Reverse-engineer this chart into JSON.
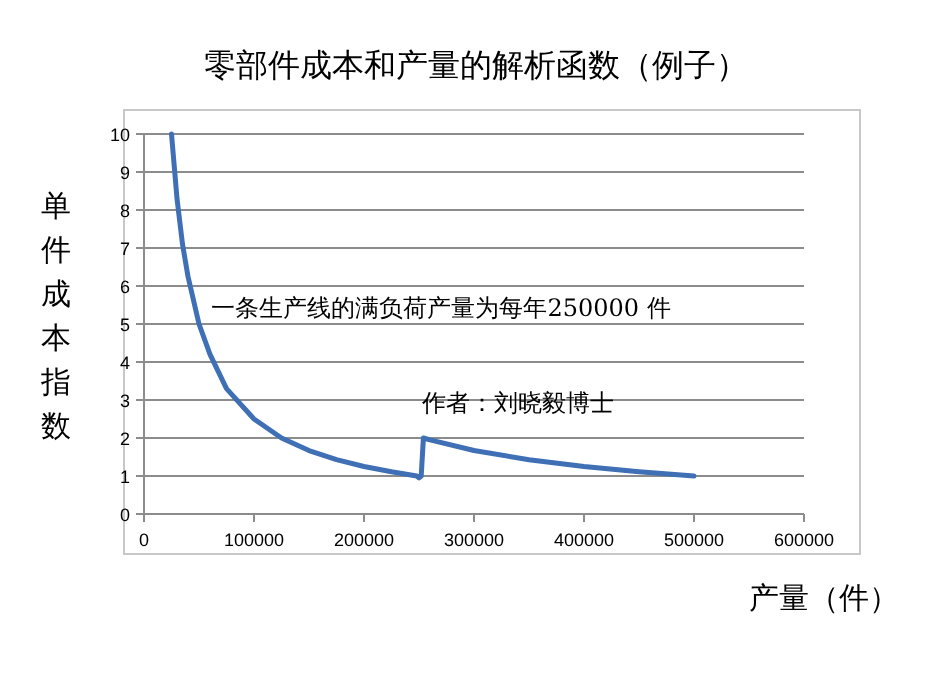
{
  "chart_data": {
    "type": "line",
    "title": "零部件成本和产量的解析函数（例子）",
    "xlabel": "产量（件）",
    "ylabel": "单件成本指数",
    "annotations": [
      "一条生产线的满负荷产量为每年250000 件",
      "作者：刘晓毅博士"
    ],
    "series": [
      {
        "color": "#3f6fb5",
        "x": [
          25000,
          30000,
          35000,
          40000,
          50000,
          60000,
          75000,
          100000,
          125000,
          150000,
          175000,
          200000,
          225000,
          248000,
          250000,
          252000,
          254000,
          260000,
          300000,
          350000,
          400000,
          450000,
          500000
        ],
        "values": [
          10,
          8.3,
          7.1,
          6.25,
          5,
          4.2,
          3.3,
          2.5,
          2,
          1.67,
          1.43,
          1.25,
          1.11,
          1,
          0.95,
          1,
          2,
          1.95,
          1.67,
          1.43,
          1.25,
          1.11,
          1
        ]
      }
    ],
    "xlim": [
      0,
      600000
    ],
    "xticks": [
      0,
      100000,
      200000,
      300000,
      400000,
      500000,
      600000
    ],
    "ylim": [
      0,
      10
    ],
    "yticks": [
      0,
      1,
      2,
      3,
      4,
      5,
      6,
      7,
      8,
      9,
      10
    ],
    "grid": "y",
    "marker": "none",
    "line_style": "solid"
  }
}
